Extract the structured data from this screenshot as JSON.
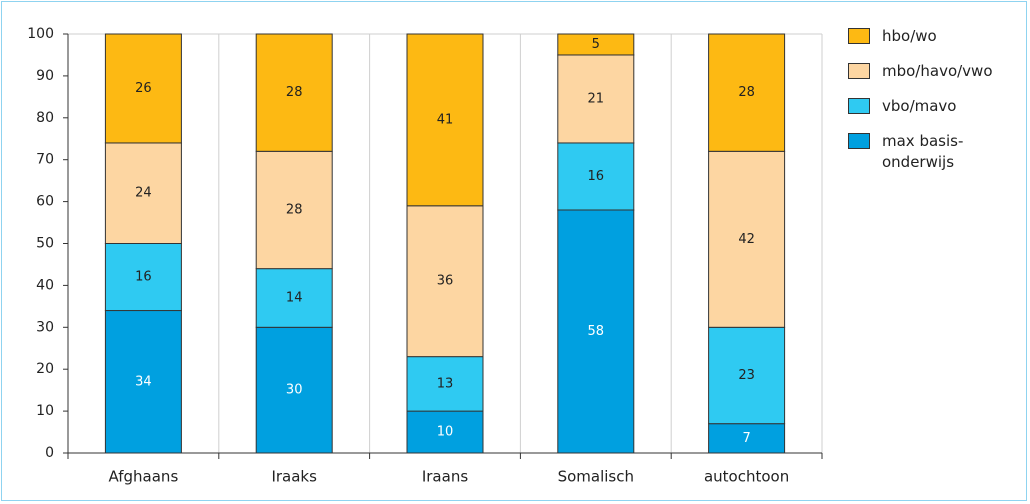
{
  "chart_data": {
    "type": "stacked_bar",
    "categories": [
      "Afghaans",
      "Iraaks",
      "Iraans",
      "Somalisch",
      "autochtoon"
    ],
    "series": [
      {
        "name": "max basis-onderwijs",
        "color": "#00a0e0",
        "values": [
          34,
          30,
          10,
          58,
          7
        ]
      },
      {
        "name": "vbo/mavo",
        "color": "#2fcaf2",
        "values": [
          16,
          14,
          13,
          16,
          23
        ]
      },
      {
        "name": "mbo/havo/vwo",
        "color": "#fdd6a2",
        "values": [
          24,
          28,
          36,
          21,
          42
        ]
      },
      {
        "name": "hbo/wo",
        "color": "#fdb913",
        "values": [
          26,
          28,
          41,
          5,
          28
        ]
      }
    ],
    "ylim": [
      0,
      100
    ],
    "yticks": [
      0,
      10,
      20,
      30,
      40,
      50,
      60,
      70,
      80,
      90,
      100
    ]
  }
}
